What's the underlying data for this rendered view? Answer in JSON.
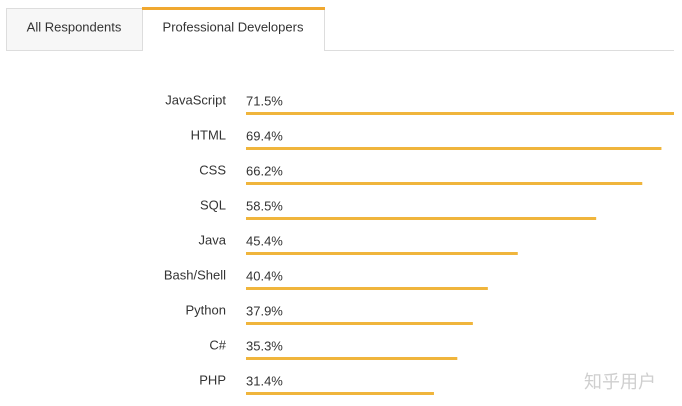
{
  "tabs": [
    "All Respondents",
    "Professional Developers"
  ],
  "watermark": "知乎用户",
  "chart_data": {
    "type": "bar",
    "orientation": "horizontal",
    "categories": [
      "JavaScript",
      "HTML",
      "CSS",
      "SQL",
      "Java",
      "Bash/Shell",
      "Python",
      "C#",
      "PHP"
    ],
    "values": [
      71.5,
      69.4,
      66.2,
      58.5,
      45.4,
      40.4,
      37.9,
      35.3,
      31.4
    ],
    "value_labels": [
      "71.5%",
      "69.4%",
      "66.2%",
      "58.5%",
      "45.4%",
      "40.4%",
      "37.9%",
      "35.3%",
      "31.4%"
    ],
    "color": "#f0b53c"
  }
}
